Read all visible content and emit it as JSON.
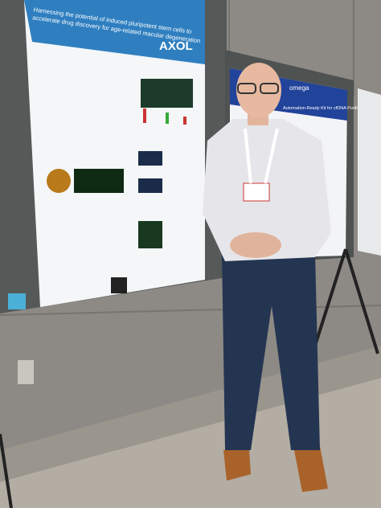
{
  "poster_left": {
    "title_lines": [
      "Harnessing the potential of induced pluripotent stem cells to",
      "accelerate drug discovery for age-related macular degeneration"
    ],
    "logo": "AXOL"
  },
  "poster_right": {
    "logo": "omega",
    "title": "Automation-Ready Kit for cfDNA Purification"
  }
}
